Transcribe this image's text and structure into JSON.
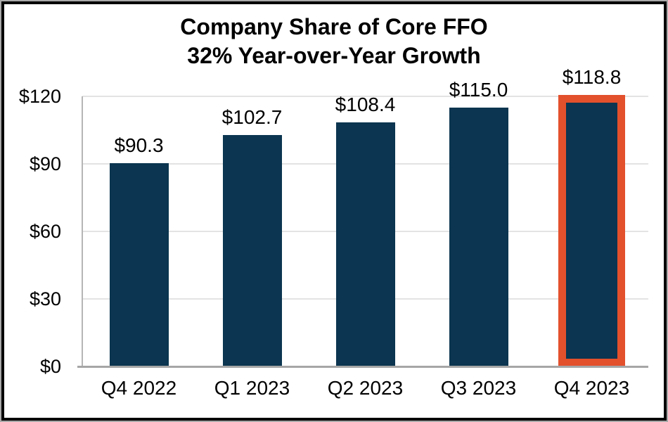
{
  "chart_data": {
    "type": "bar",
    "title_line1": "Company Share of Core FFO",
    "title_line2": "32% Year-over-Year Growth",
    "categories": [
      "Q4 2022",
      "Q1 2023",
      "Q2 2023",
      "Q3 2023",
      "Q4 2023"
    ],
    "values": [
      90.3,
      102.7,
      108.4,
      115.0,
      118.8
    ],
    "value_labels": [
      "$90.3",
      "$102.7",
      "$108.4",
      "$115.0",
      "$118.8"
    ],
    "highlighted_index": 4,
    "highlighted_category": "Q4 2023",
    "y_axis": {
      "tick_values": [
        0,
        30,
        60,
        90,
        120
      ],
      "tick_labels": [
        "$0",
        "$30",
        "$60",
        "$90",
        "$120"
      ],
      "range": [
        0,
        120
      ]
    },
    "grid": true,
    "legend": "none",
    "colors": {
      "bar": "#0B3550",
      "highlight_outline": "#E3502C",
      "gridline": "#E3E3E3",
      "y_axis_line": "#B5B5B5",
      "x_axis_line": "#A6A6A6",
      "text": "#000000",
      "frame_border": "#000000",
      "background": "#FFFFFF"
    }
  }
}
